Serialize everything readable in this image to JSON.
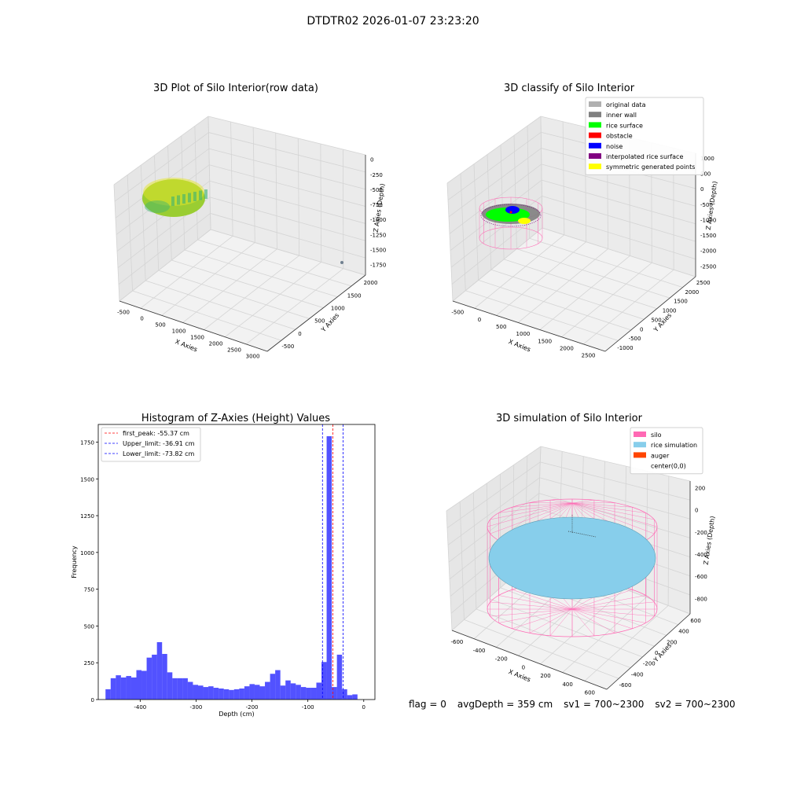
{
  "figure_title": "DTDTR02 2026-01-07 23:23:20",
  "panels": {
    "raw": {
      "title": "3D Plot of Silo Interior(row data)",
      "xlabel": "X Axies",
      "ylabel": "Y Axies",
      "zlabel": "Z Axies (Depth)",
      "xticks": [
        "-500",
        "0",
        "500",
        "1000",
        "1500",
        "2000",
        "2500",
        "3000"
      ],
      "yticks": [
        "-500",
        "0",
        "500",
        "1000",
        "1500",
        "2000"
      ],
      "zticks": [
        "0",
        "-250",
        "-500",
        "-750",
        "-1000",
        "-1250",
        "-1500",
        "-1750"
      ],
      "colors": {
        "cloud": "#9ACD32",
        "cloud_highlight": "#E6E62A",
        "cloud_shadow": "#3CB371",
        "outlier": "#708090"
      }
    },
    "classify": {
      "title": "3D classify of Silo Interior",
      "xlabel": "X Axies",
      "ylabel": "Y Axies",
      "zlabel": "Z Axies (Depth)",
      "xticks": [
        "-500",
        "0",
        "500",
        "1000",
        "1500",
        "2000",
        "2500"
      ],
      "yticks": [
        "-1000",
        "-500",
        "0",
        "500",
        "1000",
        "1500",
        "2000",
        "2500"
      ],
      "zticks": [
        "1000",
        "500",
        "0",
        "-500",
        "-1000",
        "-1500",
        "-2000",
        "-2500"
      ],
      "legend": [
        {
          "label": "original data",
          "color": "#b0b0b0"
        },
        {
          "label": "inner wall",
          "color": "#808080"
        },
        {
          "label": "rice surface",
          "color": "#00ff00"
        },
        {
          "label": "obstacle",
          "color": "#ff0000"
        },
        {
          "label": "noise",
          "color": "#0000ff"
        },
        {
          "label": "interpolated rice surface",
          "color": "#800080"
        },
        {
          "label": "symmetric generated points",
          "color": "#ffff00"
        }
      ],
      "legend_position": "top-right"
    },
    "simulation": {
      "title": "3D simulation of Silo Interior",
      "xlabel": "X Axies",
      "ylabel": "Y Axies",
      "zlabel": "Z Axies (Depth)",
      "xticks": [
        "-600",
        "-400",
        "-200",
        "0",
        "200",
        "400",
        "600"
      ],
      "yticks": [
        "-600",
        "-400",
        "-200",
        "0",
        "200",
        "400",
        "600"
      ],
      "zticks": [
        "200",
        "0",
        "-200",
        "-400",
        "-600",
        "-800"
      ],
      "legend": [
        {
          "label": "silo",
          "color": "#ff69b4"
        },
        {
          "label": "rice simulation",
          "color": "#87ceeb"
        },
        {
          "label": "auger",
          "color": "#ff4500"
        },
        {
          "label": "center(0,0)",
          "color": "#ffffff"
        }
      ],
      "legend_position": "top-right"
    }
  },
  "chart_data": {
    "type": "bar",
    "title": "Histogram of Z-Axies (Height) Values",
    "xlabel": "Depth (cm)",
    "ylabel": "Frequency",
    "xlim": [
      -475,
      20
    ],
    "ylim": [
      0,
      1870
    ],
    "xticks": [
      -400,
      -300,
      -200,
      -100,
      0
    ],
    "yticks": [
      0,
      250,
      500,
      750,
      1000,
      1250,
      1500,
      1750
    ],
    "bar_color": "#0000ff",
    "bin_width": 9.2,
    "bins_start": [
      -462,
      -452.8,
      -443.6,
      -434.4,
      -425.2,
      -416,
      -406.8,
      -397.6,
      -388.4,
      -379.2,
      -370,
      -360.8,
      -351.6,
      -342.4,
      -333.2,
      -324,
      -314.8,
      -305.6,
      -296.4,
      -287.2,
      -278,
      -268.8,
      -259.6,
      -250.4,
      -241.2,
      -232,
      -222.8,
      -213.6,
      -204.4,
      -195.2,
      -186,
      -176.8,
      -167.6,
      -158.4,
      -149.2,
      -140,
      -130.8,
      -121.6,
      -112.4,
      -103.2,
      -94,
      -84.8,
      -75.6,
      -66.4,
      -57.2,
      -48,
      -38.8,
      -29.6,
      -20.4,
      -11.2,
      -2
    ],
    "values": [
      70,
      145,
      165,
      150,
      160,
      150,
      200,
      195,
      285,
      305,
      390,
      310,
      185,
      145,
      145,
      145,
      120,
      100,
      95,
      85,
      90,
      80,
      75,
      70,
      65,
      70,
      75,
      90,
      105,
      100,
      90,
      120,
      175,
      200,
      95,
      130,
      110,
      100,
      85,
      80,
      80,
      115,
      255,
      1790,
      85,
      305,
      70,
      30,
      35,
      0,
      0
    ],
    "lines": [
      {
        "label": "first_peak: -55.37 cm",
        "x": -55.37,
        "color": "#ff0000"
      },
      {
        "label": "Upper_limit: -36.91 cm",
        "x": -36.91,
        "color": "#0000ff"
      },
      {
        "label": "Lower_limit: -73.82 cm",
        "x": -73.82,
        "color": "#0000ff"
      }
    ],
    "legend_position": "top-left"
  },
  "footer": {
    "flag": "flag = 0",
    "avg_depth": "avgDepth = 359 cm",
    "sv1": "sv1 = 700~2300",
    "sv2": "sv2 = 700~2300"
  }
}
